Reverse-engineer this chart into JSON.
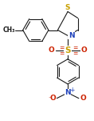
{
  "bg_color": "#ffffff",
  "line_color": "#1a1a1a",
  "atom_colors": {
    "S_thz": "#c8a000",
    "S_sulf": "#c8a000",
    "N_thz": "#2244bb",
    "N_nitro": "#2244bb",
    "O": "#cc2200"
  },
  "figsize": [
    1.18,
    1.51
  ],
  "dpi": 100,
  "xlim": [
    0,
    10
  ],
  "ylim": [
    0,
    13
  ]
}
